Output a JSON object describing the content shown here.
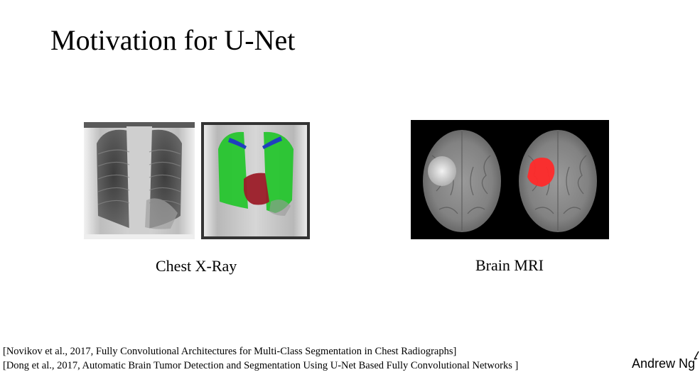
{
  "slide": {
    "title": "Motivation for U-Net"
  },
  "figures": {
    "chest": {
      "caption": "Chest X-Ray",
      "segmentation_colors": {
        "lungs": "#22c52a",
        "heart": "#9b1c28",
        "clavicles": "#1f3fbf"
      }
    },
    "brain": {
      "caption": "Brain MRI",
      "segmentation_colors": {
        "tumor": "#ff2a2a"
      }
    }
  },
  "references": [
    "[Novikov et al., 2017, Fully Convolutional Architectures for Multi-Class Segmentation in Chest Radiographs]",
    "[Dong et al., 2017, Automatic Brain Tumor Detection and Segmentation Using U-Net Based Fully Convolutional Networks ]"
  ],
  "footer": {
    "author": "Andrew Ng"
  }
}
